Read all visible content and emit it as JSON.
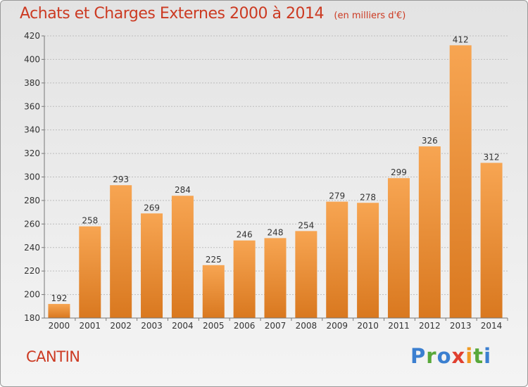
{
  "header": {
    "title": "Achats et Charges Externes 2000 à 2014",
    "unit": "(en milliers d'€)"
  },
  "footer": {
    "commune": "CANTIN",
    "logo_text": "Proxiti"
  },
  "colors": {
    "title": "#cc3a22",
    "bar_top": "#f7a552",
    "bar_bottom": "#d9781f",
    "grid": "#bdbdbd"
  },
  "chart_data": {
    "type": "bar",
    "title": "Achats et Charges Externes 2000 à 2014",
    "subtitle": "(en milliers d'€)",
    "categories": [
      "2000",
      "2001",
      "2002",
      "2003",
      "2004",
      "2005",
      "2006",
      "2007",
      "2008",
      "2009",
      "2010",
      "2011",
      "2012",
      "2013",
      "2014"
    ],
    "values": [
      192,
      258,
      293,
      269,
      284,
      225,
      246,
      248,
      254,
      279,
      278,
      299,
      326,
      412,
      312
    ],
    "ylim": [
      180,
      420
    ],
    "yticks": [
      180,
      200,
      220,
      240,
      260,
      280,
      300,
      320,
      340,
      360,
      380,
      400,
      420
    ],
    "grid": true,
    "legend": "none"
  }
}
